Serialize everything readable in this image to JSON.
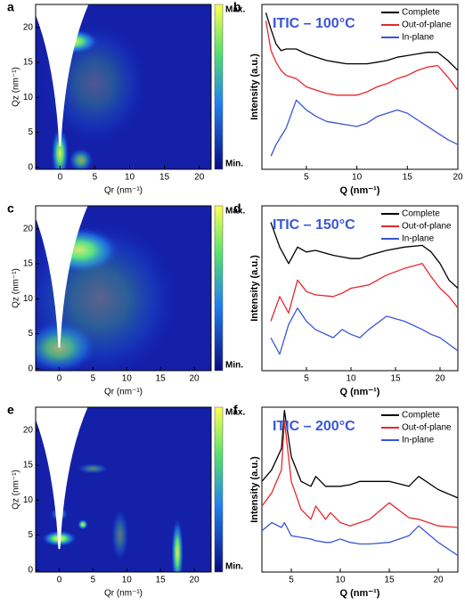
{
  "chart_data": [
    {
      "type": "heatmap",
      "panel": "a",
      "xlabel": "Qr (nm⁻¹)",
      "ylabel": "Qz (nm⁻¹)",
      "xlim": [
        -3.5,
        21.7
      ],
      "ylim": [
        -0.3,
        23.3
      ],
      "xticks": [
        0,
        5,
        10,
        15,
        20
      ],
      "yticks": [
        0,
        5,
        10,
        15,
        20
      ],
      "colorbar_labels": [
        "Max.",
        "Min."
      ]
    },
    {
      "type": "line",
      "panel": "b",
      "title": "ITIC – 100°C",
      "xlabel": "Q (nm⁻¹)",
      "ylabel": "Intensity (a.u.)",
      "xlim": [
        0.6,
        20
      ],
      "ylim": [
        0,
        100
      ],
      "xticks": [
        5,
        10,
        15,
        20
      ],
      "x": [
        1,
        1.5,
        2,
        2.5,
        3,
        4,
        5,
        6,
        7,
        8,
        9,
        10,
        11,
        12,
        13,
        14,
        15,
        16,
        17,
        18,
        19,
        20
      ],
      "series": [
        {
          "name": "Complete",
          "color": "#000000",
          "values": [
            95,
            85,
            76,
            72,
            73,
            73,
            70,
            68,
            66,
            65,
            64,
            64,
            64,
            65,
            66,
            68,
            69,
            70,
            71,
            71,
            66,
            60
          ]
        },
        {
          "name": "Out-of-plane",
          "color": "#e8262f",
          "values": [
            90,
            72,
            65,
            60,
            57,
            55,
            50,
            48,
            46,
            45,
            45,
            45,
            47,
            50,
            52,
            55,
            57,
            60,
            62,
            63,
            56,
            48
          ]
        },
        {
          "name": "In-plane",
          "color": "#3a55d8",
          "values": [
            null,
            8,
            15,
            20,
            25,
            42,
            36,
            32,
            29,
            28,
            27,
            26,
            28,
            32,
            34,
            36,
            34,
            30,
            26,
            22,
            18,
            15
          ]
        }
      ]
    },
    {
      "type": "heatmap",
      "panel": "c",
      "xlabel": "Qr (nm⁻¹)",
      "ylabel": "Qz (nm⁻¹)",
      "xlim": [
        -3.5,
        22.5
      ],
      "ylim": [
        -0.3,
        23.3
      ],
      "xticks": [
        0,
        5,
        10,
        15,
        20
      ],
      "yticks": [
        0,
        5,
        10,
        15,
        20
      ],
      "colorbar_labels": [
        "Max.",
        "Min."
      ]
    },
    {
      "type": "line",
      "panel": "d",
      "title": "ITIC – 150°C",
      "xlabel": "Q (nm⁻¹)",
      "ylabel": "Intensity (a.u.)",
      "xlim": [
        0,
        22
      ],
      "ylim": [
        0,
        100
      ],
      "xticks": [
        5,
        10,
        15,
        20
      ],
      "x": [
        1,
        2,
        3,
        4,
        5,
        6,
        8,
        9,
        10,
        11,
        12,
        14,
        16,
        18,
        19,
        20,
        21,
        22
      ],
      "series": [
        {
          "name": "Complete",
          "color": "#000000",
          "values": [
            90,
            75,
            65,
            75,
            72,
            73,
            70,
            69,
            68,
            68,
            70,
            73,
            75,
            76,
            72,
            65,
            55,
            50
          ]
        },
        {
          "name": "Out-of-plane",
          "color": "#e8262f",
          "values": [
            30,
            45,
            35,
            55,
            48,
            46,
            45,
            47,
            50,
            51,
            52,
            58,
            62,
            65,
            57,
            50,
            45,
            38
          ]
        },
        {
          "name": "In-plane",
          "color": "#3a55d8",
          "values": [
            20,
            10,
            28,
            38,
            30,
            25,
            20,
            25,
            22,
            20,
            25,
            33,
            30,
            25,
            22,
            20,
            16,
            12
          ]
        }
      ]
    },
    {
      "type": "heatmap",
      "panel": "e",
      "xlabel": "Qr (nm⁻¹)",
      "ylabel": "Qz (nm⁻¹)",
      "xlim": [
        -3.5,
        22.5
      ],
      "ylim": [
        -0.3,
        23.3
      ],
      "xticks": [
        0,
        5,
        10,
        15,
        20
      ],
      "yticks": [
        0,
        5,
        10,
        15,
        20
      ],
      "colorbar_labels": [
        "Max.",
        "Min."
      ]
    },
    {
      "type": "line",
      "panel": "f",
      "title": "ITIC – 200°C",
      "xlabel": "Q (nm⁻¹)",
      "ylabel": "Intensity (a.u.)",
      "xlim": [
        2,
        22
      ],
      "ylim": [
        0,
        100
      ],
      "xticks": [
        5,
        10,
        15,
        20
      ],
      "x": [
        2,
        3,
        4,
        4.3,
        5,
        6,
        7,
        7.5,
        8.5,
        9,
        10,
        11,
        12,
        13,
        15,
        17,
        18,
        20,
        22
      ],
      "series": [
        {
          "name": "Complete",
          "color": "#000000",
          "values": [
            55,
            62,
            75,
            98,
            70,
            55,
            52,
            58,
            52,
            52,
            52,
            53,
            55,
            55,
            55,
            52,
            58,
            50,
            45
          ]
        },
        {
          "name": "Out-of-plane",
          "color": "#e8262f",
          "values": [
            40,
            48,
            62,
            92,
            55,
            38,
            32,
            40,
            32,
            36,
            30,
            28,
            30,
            32,
            42,
            33,
            32,
            28,
            27
          ]
        },
        {
          "name": "In-plane",
          "color": "#3a55d8",
          "values": [
            25,
            30,
            27,
            30,
            22,
            21,
            20,
            19,
            18,
            18,
            20,
            18,
            17,
            17,
            18,
            22,
            28,
            18,
            10
          ]
        }
      ]
    }
  ]
}
